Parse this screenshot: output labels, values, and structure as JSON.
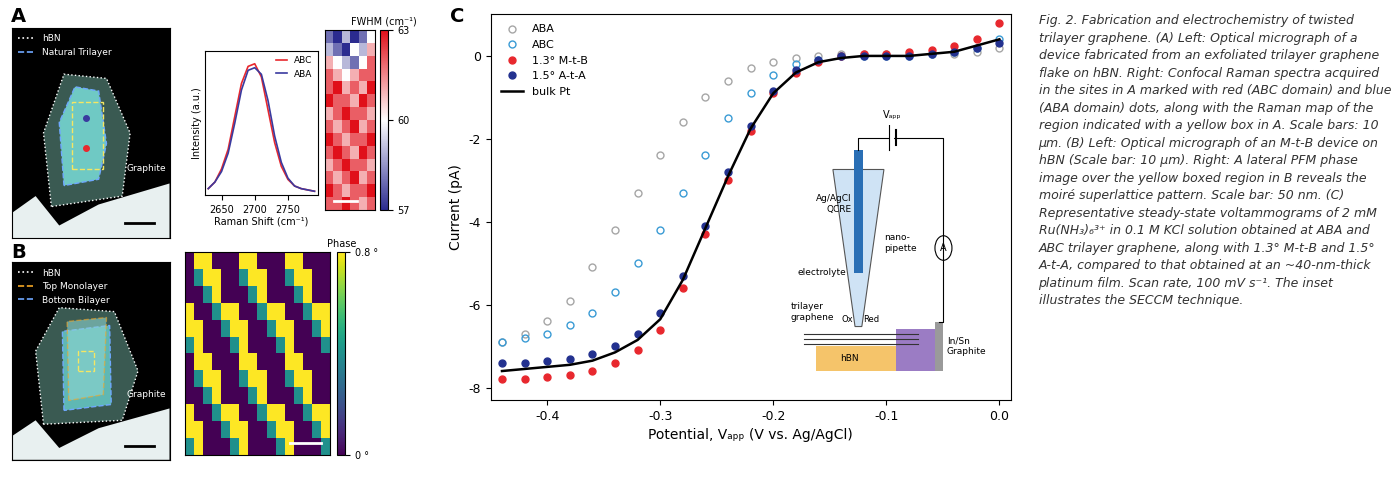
{
  "chart_data": [
    {
      "type": "image",
      "panel": "A",
      "tick_labels": false,
      "legend": "upper left",
      "series": [
        {
          "name": "hBN",
          "color": "#ffffff",
          "line_style": "dotted"
        },
        {
          "name": "Natural Trilayer",
          "color": "#6fa8ff",
          "line_style": "dashed"
        }
      ],
      "annotation": "Graphite"
    },
    {
      "type": "line",
      "tick_labels": "x",
      "x_label": "Raman Shift (cm⁻¹)",
      "y_label": "Intensity (a.u.)",
      "legend": "upper right",
      "x": [
        2630,
        2640,
        2650,
        2660,
        2670,
        2680,
        2690,
        2700,
        2710,
        2720,
        2730,
        2740,
        2750,
        2760,
        2770,
        2780,
        2790
      ],
      "series": [
        {
          "name": "ABC",
          "color": "#e8282e",
          "values": [
            0.05,
            0.1,
            0.2,
            0.35,
            0.6,
            0.85,
            0.98,
            1.0,
            0.9,
            0.65,
            0.4,
            0.22,
            0.12,
            0.07,
            0.05,
            0.04,
            0.03
          ]
        },
        {
          "name": "ABA",
          "color": "#3a3a9f",
          "values": [
            0.05,
            0.1,
            0.18,
            0.32,
            0.55,
            0.8,
            0.95,
            0.97,
            0.92,
            0.72,
            0.45,
            0.25,
            0.13,
            0.07,
            0.05,
            0.04,
            0.03
          ]
        }
      ],
      "xlim": [
        2625,
        2795
      ],
      "xticks": [
        2650,
        2700,
        2750
      ],
      "ylim": [
        0,
        1.1
      ],
      "yticks": []
    },
    {
      "type": "heatmap",
      "tick_labels": false,
      "cells": [
        [
          58,
          57,
          59,
          57,
          58,
          60
        ],
        [
          59,
          58,
          57,
          60,
          59,
          61
        ],
        [
          61,
          60,
          59,
          58,
          60,
          62
        ],
        [
          62,
          61,
          60,
          61,
          62,
          62
        ],
        [
          62,
          63,
          61,
          62,
          61,
          63
        ],
        [
          63,
          62,
          62,
          61,
          63,
          62
        ],
        [
          61,
          62,
          63,
          62,
          62,
          61
        ],
        [
          62,
          61,
          62,
          63,
          61,
          62
        ],
        [
          63,
          62,
          61,
          62,
          62,
          63
        ],
        [
          62,
          63,
          62,
          61,
          63,
          62
        ],
        [
          61,
          62,
          63,
          62,
          62,
          61
        ],
        [
          62,
          61,
          62,
          63,
          61,
          62
        ],
        [
          63,
          62,
          61,
          62,
          62,
          63
        ],
        [
          62,
          62,
          63,
          62,
          61,
          62
        ]
      ],
      "colorbar": {
        "label": "FWHM (cm⁻¹)",
        "range": [
          57,
          63
        ],
        "ticks": [
          57,
          60,
          63
        ]
      }
    },
    {
      "type": "image",
      "panel": "B",
      "tick_labels": false,
      "legend": "upper left",
      "series": [
        {
          "name": "hBN",
          "color": "#ffffff",
          "line_style": "dotted"
        },
        {
          "name": "Top Monolayer",
          "color": "#f5a623",
          "line_style": "dashed"
        },
        {
          "name": "Bottom Bilayer",
          "color": "#6fa8ff",
          "line_style": "dashed"
        }
      ],
      "annotation": "Graphite"
    },
    {
      "type": "heatmap",
      "tick_labels": false,
      "cells": [
        [
          0,
          0.8,
          0.8,
          0,
          0,
          0,
          0.8,
          0.8,
          0,
          0,
          0,
          0.8,
          0.8,
          0,
          0,
          0
        ],
        [
          0,
          0.4,
          0.8,
          0.8,
          0,
          0,
          0.4,
          0.8,
          0.8,
          0,
          0,
          0.4,
          0.8,
          0.8,
          0,
          0
        ],
        [
          0,
          0,
          0.4,
          0.8,
          0,
          0,
          0,
          0.4,
          0.8,
          0,
          0,
          0,
          0.4,
          0.8,
          0,
          0
        ],
        [
          0.8,
          0,
          0,
          0.4,
          0.8,
          0.8,
          0,
          0,
          0.4,
          0.8,
          0.8,
          0,
          0,
          0.4,
          0.8,
          0.8
        ],
        [
          0.8,
          0.8,
          0,
          0,
          0.4,
          0.8,
          0.8,
          0,
          0,
          0.4,
          0.8,
          0.8,
          0,
          0,
          0.4,
          0.8
        ],
        [
          0.4,
          0.8,
          0,
          0,
          0,
          0.4,
          0.8,
          0,
          0,
          0,
          0.4,
          0.8,
          0,
          0,
          0,
          0.4
        ],
        [
          0,
          0.8,
          0.8,
          0,
          0,
          0,
          0.8,
          0.8,
          0,
          0,
          0,
          0.8,
          0.8,
          0,
          0,
          0
        ],
        [
          0,
          0.4,
          0.8,
          0.8,
          0,
          0,
          0.4,
          0.8,
          0.8,
          0,
          0,
          0.4,
          0.8,
          0.8,
          0,
          0
        ],
        [
          0,
          0,
          0.4,
          0.8,
          0,
          0,
          0,
          0.4,
          0.8,
          0,
          0,
          0,
          0.4,
          0.8,
          0,
          0
        ],
        [
          0.8,
          0,
          0,
          0.4,
          0.8,
          0.8,
          0,
          0,
          0.4,
          0.8,
          0.8,
          0,
          0,
          0.4,
          0.8,
          0.8
        ],
        [
          0.8,
          0.8,
          0,
          0,
          0.4,
          0.8,
          0.8,
          0,
          0,
          0.4,
          0.8,
          0.8,
          0,
          0,
          0.4,
          0.8
        ],
        [
          0.4,
          0.8,
          0,
          0,
          0,
          0.4,
          0.8,
          0,
          0,
          0,
          0.4,
          0.8,
          0,
          0,
          0,
          0.4
        ]
      ],
      "colorbar": {
        "label": "Phase",
        "range": [
          0,
          0.8
        ],
        "ticks": [
          {
            "value": 0.8,
            "label": "0.8 °"
          },
          {
            "value": 0,
            "label": "0 °"
          }
        ]
      }
    },
    {
      "type": "line",
      "panel": "C",
      "x_label": "Potential, Vₐₚₚ (V vs. Ag/AgCl)",
      "y_label": "Current (pA)",
      "legend": "upper left",
      "x": [
        -0.44,
        -0.42,
        -0.4,
        -0.38,
        -0.36,
        -0.34,
        -0.32,
        -0.3,
        -0.28,
        -0.26,
        -0.24,
        -0.22,
        -0.2,
        -0.18,
        -0.16,
        -0.14,
        -0.12,
        -0.1,
        -0.08,
        -0.06,
        -0.04,
        -0.02,
        0.0
      ],
      "series": [
        {
          "name": "ABA",
          "color": "#a6a6a6",
          "marker": "open_circle",
          "line_style": "none",
          "values": [
            -6.9,
            -6.7,
            -6.4,
            -5.9,
            -5.1,
            -4.2,
            -3.3,
            -2.4,
            -1.6,
            -1.0,
            -0.6,
            -0.3,
            -0.15,
            -0.05,
            0.0,
            0.05,
            0.05,
            0.05,
            0.05,
            0.05,
            0.05,
            0.1,
            0.2
          ]
        },
        {
          "name": "ABC",
          "color": "#3a9bd5",
          "marker": "open_circle",
          "line_style": "none",
          "values": [
            -6.9,
            -6.8,
            -6.7,
            -6.5,
            -6.2,
            -5.7,
            -5.0,
            -4.2,
            -3.3,
            -2.4,
            -1.5,
            -0.9,
            -0.45,
            -0.2,
            -0.1,
            0.0,
            0.0,
            0.0,
            0.0,
            0.05,
            0.1,
            0.2,
            0.4
          ]
        },
        {
          "name": "1.3° M-t-B",
          "color": "#e8282e",
          "marker": "circle",
          "line_style": "none",
          "values": [
            -7.8,
            -7.8,
            -7.75,
            -7.7,
            -7.6,
            -7.4,
            -7.1,
            -6.6,
            -5.6,
            -4.3,
            -3.0,
            -1.8,
            -0.9,
            -0.4,
            -0.15,
            0.0,
            0.05,
            0.05,
            0.1,
            0.15,
            0.25,
            0.4,
            0.8
          ]
        },
        {
          "name": "1.5° A-t-A",
          "color": "#23318f",
          "marker": "circle",
          "line_style": "none",
          "values": [
            -7.4,
            -7.4,
            -7.35,
            -7.3,
            -7.2,
            -7.0,
            -6.7,
            -6.2,
            -5.3,
            -4.1,
            -2.8,
            -1.7,
            -0.85,
            -0.35,
            -0.1,
            0.0,
            0.0,
            0.0,
            0.0,
            0.05,
            0.1,
            0.2,
            0.3
          ]
        },
        {
          "name": "bulk Pt",
          "color": "#000000",
          "marker": "none",
          "line_style": "solid",
          "values": [
            -7.6,
            -7.55,
            -7.5,
            -7.45,
            -7.35,
            -7.15,
            -6.85,
            -6.35,
            -5.4,
            -4.15,
            -2.9,
            -1.75,
            -0.9,
            -0.4,
            -0.15,
            -0.05,
            0.0,
            0.0,
            0.0,
            0.05,
            0.1,
            0.25,
            0.4
          ]
        }
      ],
      "xlim": [
        -0.45,
        0.01
      ],
      "xticks": [
        -0.4,
        -0.3,
        -0.2,
        -0.1,
        0.0
      ],
      "ylim": [
        -8.3,
        1.0
      ],
      "yticks": [
        -8,
        -6,
        -4,
        -2,
        0
      ],
      "inset": {
        "v_app": "Vₐₚₚ",
        "electrode": "Ag/AgCl\nQCRE",
        "electrolyte": "electrolyte",
        "pipette": "nano-\npipette",
        "ox": "Ox",
        "red": "Red",
        "sample": "trilayer\ngraphene",
        "contact": "In/Sn\nGraphite",
        "substrate": "hBN",
        "meter": "A"
      }
    }
  ],
  "caption": "Fig. 2. Fabrication and electrochemistry of twisted trilayer graphene. (A) Left: Optical micrograph of a device fabricated from an exfoliated trilayer graphene flake on hBN. Right: Confocal Raman spectra acquired in the sites in A marked with red (ABC domain) and blue (ABA domain) dots, along with the Raman map of the region indicated with a yellow box in A. Scale bars: 10 µm. (B) Left: Optical micrograph of an M-t-B device on hBN (Scale bar: 10 µm). Right: A lateral PFM phase image over the yellow boxed region in B reveals the moiré superlattice pattern. Scale bar: 50 nm. (C) Representative steady-state voltammograms of 2 mM Ru(NH₃)₆³⁺ in 0.1 M KCl solution obtained at ABA and ABC trilayer graphene, along with 1.3° M-t-B and 1.5° A-t-A, compared to that obtained at an ~40-nm-thick platinum film. Scan rate, 100 mV s⁻¹. The inset illustrates the SECCM technique."
}
